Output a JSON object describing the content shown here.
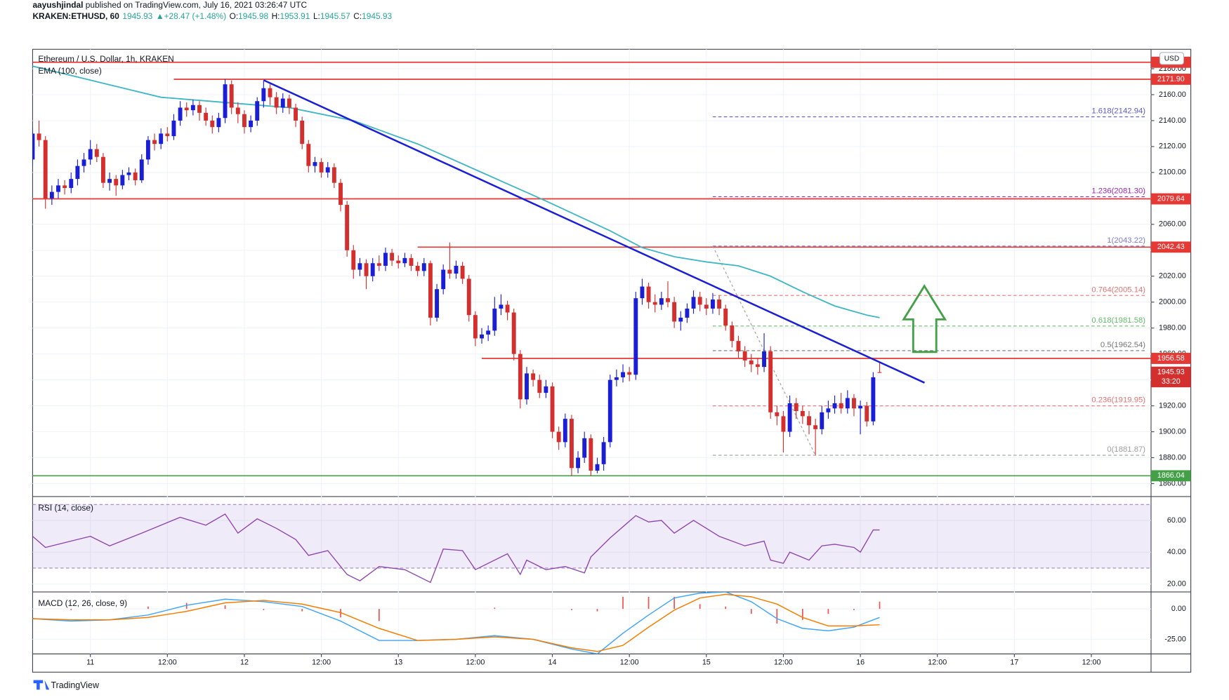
{
  "header": {
    "publisher": "aayushjindal",
    "published": "published on TradingView.com, July 16, 2021 03:26:47 UTC",
    "quote": [
      {
        "text": "KRAKEN:ETHUSD, 60",
        "color": "#131722"
      },
      {
        "text": "1945.93",
        "color": "#26a69a"
      },
      {
        "text": "▲+28.47 (+1.48%)",
        "color": "#26a69a"
      },
      {
        "text": "O:",
        "color": "#131722"
      },
      {
        "text": "1945.98",
        "color": "#26a69a"
      },
      {
        "text": "H:",
        "color": "#131722"
      },
      {
        "text": "1953.91",
        "color": "#26a69a"
      },
      {
        "text": "L:",
        "color": "#131722"
      },
      {
        "text": "1945.57",
        "color": "#26a69a"
      },
      {
        "text": "C:",
        "color": "#131722"
      },
      {
        "text": "1945.93",
        "color": "#26a69a"
      }
    ]
  },
  "chart_data": {
    "type": "candlestick",
    "title": "Ethereum / U.S. Dollar, 1h, KRAKEN",
    "currency": "USD",
    "countdown": "33:20",
    "up_color": "#1a1fd6",
    "down_color": "#d32f2f",
    "open": [
      2110,
      2130,
      2125,
      2080,
      2085,
      2090,
      2088,
      2095,
      2105,
      2110,
      2118,
      2112,
      2092,
      2095,
      2090,
      2098,
      2100,
      2094,
      2110,
      2125,
      2122,
      2130,
      2128,
      2140,
      2150,
      2148,
      2152,
      2146,
      2140,
      2135,
      2142,
      2168,
      2150,
      2145,
      2135,
      2140,
      2155,
      2165,
      2158,
      2150,
      2157,
      2150,
      2140,
      2122,
      2105,
      2108,
      2100,
      2104,
      2092,
      2075,
      2040,
      2025,
      2030,
      2020,
      2030,
      2028,
      2038,
      2032,
      2030,
      2034,
      2028,
      2024,
      2030,
      1988,
      2010,
      2025,
      2022,
      2028,
      2018,
      1990,
      1972,
      1975,
      1978,
      1995,
      1998,
      1992,
      1960,
      1925,
      1945,
      1940,
      1930,
      1935,
      1900,
      1892,
      1910,
      1872,
      1880,
      1895,
      1870,
      1875,
      1892,
      1940,
      1942,
      1946,
      1944,
      2003,
      2012,
      2000,
      1998,
      2003,
      2000,
      1985,
      1988,
      1995,
      2004,
      1998,
      1995,
      2002,
      1995,
      1982,
      1970,
      1962,
      1955,
      1952,
      1950,
      1962,
      1915,
      1912,
      1900,
      1922,
      1916,
      1912,
      1905,
      1902,
      1915,
      1918,
      1922,
      1918,
      1926,
      1918,
      1920,
      1908,
      1945.98
    ],
    "high": [
      2135,
      2140,
      2128,
      2090,
      2095,
      2094,
      2100,
      2110,
      2115,
      2125,
      2122,
      2115,
      2100,
      2098,
      2102,
      2104,
      2103,
      2114,
      2128,
      2130,
      2134,
      2135,
      2145,
      2155,
      2154,
      2156,
      2155,
      2150,
      2144,
      2146,
      2172,
      2171,
      2154,
      2148,
      2144,
      2158,
      2171,
      2168,
      2162,
      2161,
      2160,
      2153,
      2143,
      2125,
      2112,
      2111,
      2108,
      2107,
      2095,
      2078,
      2044,
      2034,
      2033,
      2034,
      2036,
      2042,
      2041,
      2036,
      2038,
      2037,
      2031,
      2034,
      2032,
      2014,
      2029,
      2046,
      2032,
      2031,
      2021,
      1993,
      1980,
      1982,
      2004,
      2006,
      2001,
      1995,
      1963,
      1950,
      1948,
      1944,
      1940,
      1938,
      1904,
      1914,
      1913,
      1885,
      1900,
      1898,
      1880,
      1896,
      1944,
      1948,
      1952,
      1950,
      2008,
      2018,
      2015,
      2006,
      2008,
      2016,
      2004,
      1993,
      1999,
      2009,
      2008,
      2003,
      2007,
      2005,
      1998,
      1985,
      1974,
      1966,
      1960,
      1957,
      1976,
      1966,
      1920,
      1916,
      1928,
      1926,
      1920,
      1916,
      1910,
      1920,
      1924,
      1928,
      1930,
      1932,
      1929,
      1924,
      1923,
      1946,
      1953.91
    ],
    "low": [
      2105,
      2120,
      2072,
      2075,
      2080,
      2083,
      2084,
      2090,
      2100,
      2106,
      2108,
      2088,
      2086,
      2082,
      2087,
      2094,
      2090,
      2092,
      2106,
      2117,
      2118,
      2124,
      2125,
      2136,
      2143,
      2144,
      2140,
      2136,
      2130,
      2131,
      2138,
      2145,
      2138,
      2130,
      2131,
      2136,
      2150,
      2152,
      2145,
      2146,
      2145,
      2135,
      2118,
      2100,
      2100,
      2096,
      2096,
      2088,
      2070,
      2035,
      2018,
      2020,
      2010,
      2016,
      2024,
      2024,
      2028,
      2026,
      2027,
      2024,
      2020,
      2020,
      1982,
      1985,
      2006,
      2018,
      2018,
      2014,
      1985,
      1966,
      1968,
      1970,
      1974,
      1990,
      1986,
      1955,
      1918,
      1921,
      1935,
      1926,
      1926,
      1895,
      1886,
      1888,
      1866,
      1868,
      1876,
      1866,
      1868,
      1870,
      1888,
      1935,
      1938,
      1939,
      1940,
      1998,
      1995,
      1992,
      1994,
      1996,
      1980,
      1978,
      1984,
      1991,
      1993,
      1990,
      1991,
      1990,
      1978,
      1965,
      1957,
      1950,
      1946,
      1944,
      1946,
      1910,
      1905,
      1884,
      1896,
      1910,
      1906,
      1898,
      1882,
      1898,
      1910,
      1914,
      1914,
      1914,
      1912,
      1898,
      1904,
      1905,
      1945.57
    ],
    "close": [
      2130,
      2125,
      2080,
      2085,
      2090,
      2088,
      2095,
      2105,
      2110,
      2118,
      2112,
      2092,
      2095,
      2090,
      2098,
      2100,
      2094,
      2110,
      2125,
      2122,
      2130,
      2128,
      2140,
      2150,
      2148,
      2152,
      2146,
      2140,
      2135,
      2142,
      2168,
      2150,
      2145,
      2135,
      2140,
      2155,
      2165,
      2158,
      2150,
      2157,
      2150,
      2140,
      2122,
      2105,
      2108,
      2100,
      2104,
      2092,
      2075,
      2040,
      2025,
      2030,
      2020,
      2030,
      2028,
      2038,
      2032,
      2030,
      2034,
      2028,
      2024,
      2030,
      1988,
      2010,
      2025,
      2022,
      2028,
      2018,
      1990,
      1972,
      1975,
      1978,
      1995,
      1998,
      1992,
      1960,
      1925,
      1945,
      1940,
      1930,
      1935,
      1900,
      1892,
      1910,
      1872,
      1880,
      1895,
      1870,
      1875,
      1892,
      1940,
      1942,
      1946,
      1944,
      2003,
      2012,
      2000,
      1998,
      2003,
      2000,
      1985,
      1988,
      1995,
      2004,
      1998,
      1995,
      2002,
      1995,
      1982,
      1970,
      1962,
      1955,
      1952,
      1950,
      1962,
      1915,
      1912,
      1900,
      1922,
      1916,
      1912,
      1905,
      1902,
      1915,
      1918,
      1922,
      1918,
      1926,
      1918,
      1920,
      1908,
      1942,
      1945.93
    ],
    "ylim": [
      1850,
      2195
    ],
    "yticks": [
      {
        "value": 1860,
        "label": "1860.00"
      },
      {
        "value": 1880,
        "label": "1880.00"
      },
      {
        "value": 1900,
        "label": "1900.00"
      },
      {
        "value": 1920,
        "label": "1920.00"
      },
      {
        "value": 1940,
        "label": "1940.00"
      },
      {
        "value": 1960,
        "label": "1960.00"
      },
      {
        "value": 1980,
        "label": "1980.00"
      },
      {
        "value": 2000,
        "label": "2000.00"
      },
      {
        "value": 2020,
        "label": "2020.00"
      },
      {
        "value": 2040,
        "label": "2040.00"
      },
      {
        "value": 2060,
        "label": "2060.00"
      },
      {
        "value": 2080,
        "label": "2080.00"
      },
      {
        "value": 2100,
        "label": "2100.00"
      },
      {
        "value": 2120,
        "label": "2120.00"
      },
      {
        "value": 2140,
        "label": "2140.00"
      },
      {
        "value": 2160,
        "label": "2160.00"
      },
      {
        "value": 2180,
        "label": "2180.00"
      }
    ],
    "xlim": [
      0,
      174.3
    ],
    "xticks": [
      {
        "value": 9,
        "label": "11"
      },
      {
        "value": 21,
        "label": "12:00"
      },
      {
        "value": 33,
        "label": "12"
      },
      {
        "value": 45,
        "label": "12:00"
      },
      {
        "value": 57,
        "label": "13"
      },
      {
        "value": 69,
        "label": "12:00"
      },
      {
        "value": 81,
        "label": "14"
      },
      {
        "value": 93,
        "label": "12:00"
      },
      {
        "value": 105,
        "label": "15"
      },
      {
        "value": 117,
        "label": "12:00"
      },
      {
        "value": 129,
        "label": "16"
      },
      {
        "value": 141,
        "label": "12:00"
      },
      {
        "value": 153,
        "label": "17"
      },
      {
        "value": 165,
        "label": "12:00"
      }
    ],
    "grid": true,
    "ema": {
      "name": "EMA (100, close)",
      "color": "#3fb6c4",
      "x": [
        0,
        10,
        20,
        30,
        40,
        50,
        60,
        70,
        80,
        90,
        95,
        100,
        105,
        110,
        115,
        120,
        125,
        130,
        132
      ],
      "values": [
        2182,
        2170,
        2158,
        2154,
        2150,
        2140,
        2122,
        2100,
        2078,
        2055,
        2042,
        2035,
        2031,
        2028,
        2020,
        2008,
        1997,
        1990,
        1988
      ]
    },
    "levels": [
      {
        "value": 2185,
        "from": 0,
        "color": "#e53935"
      },
      {
        "value": 2171.9,
        "label": "2171.90",
        "from": 22,
        "color": "#e53935"
      },
      {
        "value": 2079.64,
        "label": "2079.64",
        "from": 0,
        "color": "#e53935"
      },
      {
        "value": 2042.43,
        "label": "2042.43",
        "from": 60,
        "color": "#e53935"
      },
      {
        "value": 1956.58,
        "label": "1956.58",
        "from": 70,
        "color": "#e53935"
      },
      {
        "value": 1866.04,
        "label": "1866.04",
        "from": 0,
        "color": "#43a047"
      }
    ],
    "trendline": {
      "color": "#1a1fd6",
      "x": [
        36,
        139
      ],
      "values": [
        2171.2,
        1937.8
      ]
    },
    "fib_anchor": {
      "color": "#9e9e9e",
      "x": [
        106,
        122
      ],
      "values": [
        2043.22,
        1881.87
      ]
    },
    "fib": {
      "from": 106,
      "levels": [
        {
          "value": 2142.94,
          "label": "1.618(2142.94)",
          "color": "#5c5cc9"
        },
        {
          "value": 2081.3,
          "label": "1.236(2081.30)",
          "color": "#9c27b0"
        },
        {
          "value": 2043.22,
          "label": "1(2043.22)",
          "color": "#7b7bd0"
        },
        {
          "value": 2005.14,
          "label": "0.764(2005.14)",
          "color": "#e57373"
        },
        {
          "value": 1981.58,
          "label": "0.618(1981.58)",
          "color": "#66bb6a"
        },
        {
          "value": 1962.54,
          "label": "0.5(1962.54)",
          "color": "#757575"
        },
        {
          "value": 1919.95,
          "label": "0.236(1919.95)",
          "color": "#e57373"
        },
        {
          "value": 1881.87,
          "label": "0(1881.87)",
          "color": "#9e9e9e"
        }
      ]
    },
    "rsi": {
      "name": "RSI (14, close)",
      "color": "#8e44ad",
      "ylim": [
        15,
        75
      ],
      "band": [
        30,
        70
      ],
      "yticks": [
        {
          "value": 20,
          "label": "20.00"
        },
        {
          "value": 40,
          "label": "40.00"
        },
        {
          "value": 60,
          "label": "60.00"
        }
      ],
      "x": [
        0,
        2,
        7,
        9,
        12,
        17,
        23,
        27,
        30,
        32,
        35,
        38,
        41,
        43,
        46,
        49,
        51,
        54,
        58,
        62,
        64,
        67,
        69,
        74,
        76,
        77,
        80,
        83,
        86,
        87,
        90,
        94,
        96,
        98,
        100,
        103,
        107,
        111,
        114,
        115,
        117,
        118,
        121,
        123,
        125,
        128,
        129,
        131,
        132
      ],
      "values": [
        50,
        43,
        48,
        50,
        44,
        52,
        62,
        57,
        64,
        52,
        61,
        55,
        48,
        38,
        41,
        26,
        22,
        31,
        29,
        21,
        42,
        41,
        29,
        39,
        26,
        35,
        29,
        31,
        27,
        37,
        49,
        63,
        59,
        60,
        52,
        60,
        50,
        44,
        47,
        35,
        33,
        40,
        35,
        44,
        45,
        43,
        40,
        54,
        54
      ]
    },
    "macd": {
      "name": "MACD (12, 26, close, 9)",
      "ylim": [
        -37,
        14
      ],
      "yticks": [
        {
          "value": 0,
          "label": "0.00"
        },
        {
          "value": -25,
          "label": "-25.00"
        }
      ],
      "x": [
        0,
        6,
        12,
        18,
        24,
        30,
        36,
        42,
        48,
        54,
        60,
        66,
        72,
        78,
        84,
        88,
        92,
        96,
        100,
        104,
        108,
        112,
        116,
        120,
        124,
        128,
        132
      ],
      "macd": {
        "color": "#42a5f5",
        "values": [
          -8,
          -10,
          -9,
          -5,
          3,
          8,
          6,
          2,
          -10,
          -26,
          -26,
          -25,
          -22,
          -25,
          -33,
          -37,
          -20,
          -5,
          9,
          13,
          14,
          6,
          -8,
          -16,
          -18,
          -15,
          -7
        ]
      },
      "signal": {
        "color": "#f57c00",
        "values": [
          -8,
          -9,
          -9,
          -7,
          -2,
          5,
          7,
          4,
          -3,
          -16,
          -26,
          -25,
          -23,
          -25,
          -32,
          -35,
          -30,
          -15,
          -1,
          9,
          12,
          10,
          4,
          -7,
          -14,
          -14,
          -13
        ]
      },
      "histogram": {
        "color": "#ef5350",
        "values": [
          0,
          -1,
          0,
          2,
          5,
          3,
          -1,
          -2,
          -7,
          -10,
          0,
          0,
          1,
          0,
          -1,
          -2,
          10,
          10,
          10,
          4,
          2,
          -4,
          -12,
          -9,
          -4,
          -1,
          6
        ]
      }
    }
  },
  "footer": {
    "brand": "TradingView"
  }
}
